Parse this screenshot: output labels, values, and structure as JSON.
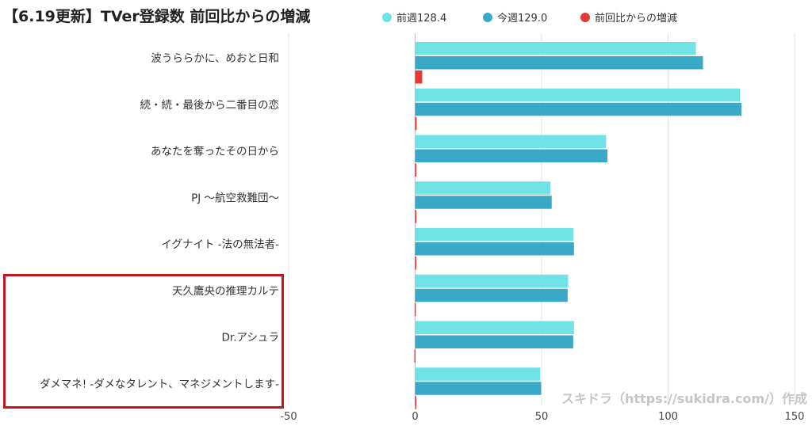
{
  "title": "【6.19更新】TVer登録数 前回比からの増減",
  "legend": [
    {
      "label": "前週128.4",
      "color": "#6fe3e6"
    },
    {
      "label": "今週129.0",
      "color": "#3aa9c7"
    },
    {
      "label": "前回比からの増減",
      "color": "#e53935"
    }
  ],
  "watermark": "スキドラ（https://sukidra.com/）作成",
  "chart_data": {
    "type": "bar",
    "orientation": "horizontal",
    "categories": [
      "波うららかに、めおと日和",
      "続・続・最後から二番目の恋",
      "あなたを奪ったその日から",
      "PJ 〜航空救難団〜",
      "イグナイト -法の無法者-",
      "天久鷹央の推理カルテ",
      "Dr.アシュラ",
      "ダメマネ! -ダメなタレント、マネジメントします-"
    ],
    "series": [
      {
        "name": "前週128.4",
        "color": "#6fe3e6",
        "values": [
          111,
          128.4,
          75.5,
          53.5,
          62.5,
          60.5,
          62.8,
          49.5
        ]
      },
      {
        "name": "今週129.0",
        "color": "#3aa9c7",
        "values": [
          113.8,
          129.0,
          76,
          54,
          62.8,
          60.3,
          62.5,
          49.8
        ]
      },
      {
        "name": "前回比からの増減",
        "color": "#e53935",
        "values": [
          2.8,
          0.6,
          0.5,
          0.5,
          0.3,
          -0.2,
          -0.3,
          0.3
        ]
      }
    ],
    "xlim": [
      -50,
      150
    ],
    "xticks": [
      -50,
      0,
      50,
      100,
      150
    ],
    "grid": true,
    "legend_position": "top"
  },
  "highlight_box": {
    "categories_marked": [
      "天久鷹央の推理カルテ",
      "Dr.アシュラ",
      "ダメマネ! -ダメなタレント、マネジメントします-"
    ]
  }
}
